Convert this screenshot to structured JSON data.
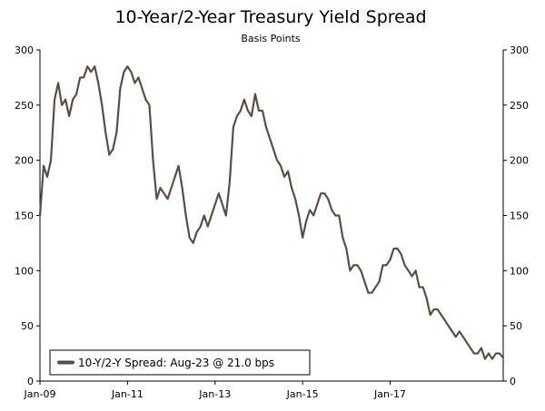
{
  "chart_data": {
    "type": "line",
    "title": "10-Year/2-Year Treasury Yield Spread",
    "subtitle": "Basis Points",
    "xlabel": "",
    "ylabel": "",
    "x_range": [
      "2009-01",
      "2019-08"
    ],
    "ylim": [
      0,
      300
    ],
    "y_ticks": [
      0,
      50,
      100,
      150,
      200,
      250,
      300
    ],
    "x_ticks": [
      {
        "date": "2009-01",
        "label": "Jan-09"
      },
      {
        "date": "2011-01",
        "label": "Jan-11"
      },
      {
        "date": "2013-01",
        "label": "Jan-13"
      },
      {
        "date": "2015-01",
        "label": "Jan-15"
      },
      {
        "date": "2017-01",
        "label": "Jan-17"
      }
    ],
    "grid": false,
    "dual_y_axis": true,
    "legend_position": "bottom-left",
    "series": [
      {
        "name": "10-Y/2-Y Spread: Aug-23 @ 21.0 bps",
        "color": "#5a4e44",
        "x": [
          "2009-01",
          "2009-02",
          "2009-03",
          "2009-04",
          "2009-05",
          "2009-06",
          "2009-07",
          "2009-08",
          "2009-09",
          "2009-10",
          "2009-11",
          "2009-12",
          "2010-01",
          "2010-02",
          "2010-03",
          "2010-04",
          "2010-05",
          "2010-06",
          "2010-07",
          "2010-08",
          "2010-09",
          "2010-10",
          "2010-11",
          "2010-12",
          "2011-01",
          "2011-02",
          "2011-03",
          "2011-04",
          "2011-05",
          "2011-06",
          "2011-07",
          "2011-08",
          "2011-09",
          "2011-10",
          "2011-11",
          "2011-12",
          "2012-01",
          "2012-02",
          "2012-03",
          "2012-04",
          "2012-05",
          "2012-06",
          "2012-07",
          "2012-08",
          "2012-09",
          "2012-10",
          "2012-11",
          "2012-12",
          "2013-01",
          "2013-02",
          "2013-03",
          "2013-04",
          "2013-05",
          "2013-06",
          "2013-07",
          "2013-08",
          "2013-09",
          "2013-10",
          "2013-11",
          "2013-12",
          "2014-01",
          "2014-02",
          "2014-03",
          "2014-04",
          "2014-05",
          "2014-06",
          "2014-07",
          "2014-08",
          "2014-09",
          "2014-10",
          "2014-11",
          "2014-12",
          "2015-01",
          "2015-02",
          "2015-03",
          "2015-04",
          "2015-05",
          "2015-06",
          "2015-07",
          "2015-08",
          "2015-09",
          "2015-10",
          "2015-11",
          "2015-12",
          "2016-01",
          "2016-02",
          "2016-03",
          "2016-04",
          "2016-05",
          "2016-06",
          "2016-07",
          "2016-08",
          "2016-09",
          "2016-10",
          "2016-11",
          "2016-12",
          "2017-01",
          "2017-02",
          "2017-03",
          "2017-04",
          "2017-05",
          "2017-06",
          "2017-07",
          "2017-08",
          "2017-09",
          "2017-10",
          "2017-11",
          "2017-12",
          "2018-01",
          "2018-02",
          "2018-03",
          "2018-04",
          "2018-05",
          "2018-06",
          "2018-07",
          "2018-08",
          "2018-09",
          "2018-10",
          "2018-11",
          "2018-12",
          "2019-01",
          "2019-02",
          "2019-03",
          "2019-04",
          "2019-05",
          "2019-06",
          "2019-07",
          "2019-08"
        ],
        "values": [
          150,
          195,
          185,
          200,
          255,
          270,
          250,
          255,
          240,
          255,
          260,
          275,
          275,
          285,
          280,
          285,
          270,
          250,
          225,
          205,
          210,
          225,
          265,
          280,
          285,
          280,
          270,
          275,
          265,
          255,
          250,
          200,
          165,
          175,
          170,
          165,
          175,
          185,
          195,
          175,
          150,
          130,
          125,
          135,
          140,
          150,
          140,
          150,
          160,
          170,
          160,
          150,
          180,
          230,
          240,
          245,
          255,
          245,
          240,
          260,
          245,
          245,
          230,
          220,
          210,
          200,
          195,
          185,
          190,
          175,
          165,
          150,
          130,
          145,
          155,
          150,
          160,
          170,
          170,
          165,
          155,
          150,
          150,
          130,
          120,
          100,
          105,
          105,
          100,
          90,
          80,
          80,
          85,
          90,
          105,
          105,
          110,
          120,
          120,
          115,
          105,
          100,
          95,
          100,
          85,
          85,
          75,
          60,
          65,
          65,
          60,
          55,
          50,
          45,
          40,
          45,
          40,
          35,
          30,
          25,
          25,
          30,
          20,
          25,
          20,
          25,
          25,
          21
        ]
      }
    ]
  }
}
